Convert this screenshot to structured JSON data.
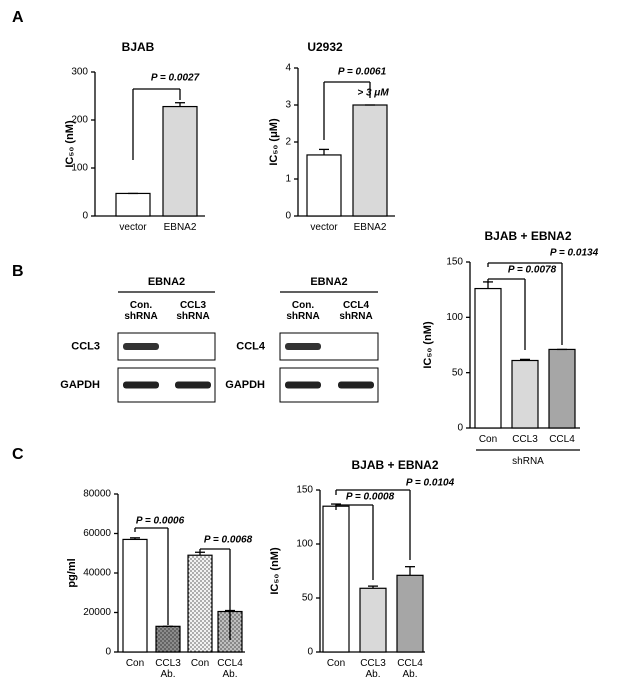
{
  "panels": [
    "A",
    "B",
    "C"
  ],
  "blots": [
    {
      "header": "EBNA2",
      "lanes": [
        "Con.\nshRNA",
        "CCL3\nshRNA"
      ],
      "rows": [
        "CCL3",
        "GAPDH"
      ]
    },
    {
      "header": "EBNA2",
      "lanes": [
        "Con.\nshRNA",
        "CCL4\nshRNA"
      ],
      "rows": [
        "CCL4",
        "GAPDH"
      ]
    }
  ],
  "chart_data": [
    {
      "type": "bar",
      "title": "BJAB",
      "ylabel": "IC₅₀ (nM)",
      "categories": [
        "vector",
        "EBNA2"
      ],
      "values": [
        47,
        228
      ],
      "errors": [
        0,
        8
      ],
      "colors": [
        "#ffffff",
        "#d9d9d9"
      ],
      "ylim": [
        0,
        300
      ],
      "yticks": [
        0,
        100,
        200,
        300
      ],
      "annotations": [
        "P = 0.0027"
      ]
    },
    {
      "type": "bar",
      "title": "U2932",
      "ylabel": "IC₅₀ (μM)",
      "categories": [
        "vector",
        "EBNA2"
      ],
      "values": [
        1.65,
        3.0
      ],
      "errors": [
        0.15,
        0
      ],
      "colors": [
        "#ffffff",
        "#d9d9d9"
      ],
      "ylim": [
        0,
        4
      ],
      "yticks": [
        0,
        1,
        2,
        3,
        4
      ],
      "annotations": [
        "P = 0.0061",
        "> 3 μM"
      ]
    },
    {
      "type": "bar",
      "title": "BJAB + EBNA2",
      "ylabel": "IC₅₀ (nM)",
      "xlabel": "shRNA",
      "categories": [
        "Con",
        "CCL3",
        "CCL4"
      ],
      "values": [
        126,
        61,
        71
      ],
      "errors": [
        6,
        1,
        0
      ],
      "colors": [
        "#ffffff",
        "#d9d9d9",
        "#a6a6a6"
      ],
      "ylim": [
        0,
        150
      ],
      "yticks": [
        0,
        50,
        100,
        150
      ],
      "annotations": [
        "P = 0.0078",
        "P = 0.0134"
      ]
    },
    {
      "type": "bar",
      "ylabel": "pg/ml",
      "categories": [
        "Con",
        "CCL3\nAb.",
        "Con",
        "CCL4\nAb."
      ],
      "values": [
        57000,
        13000,
        49000,
        20500
      ],
      "errors": [
        800,
        0,
        1500,
        500
      ],
      "colors": [
        "#ffffff",
        "#8c8c8c",
        "#f2f2f2",
        "#bfbfbf"
      ],
      "dotted": [
        false,
        true,
        true,
        true
      ],
      "ylim": [
        0,
        80000
      ],
      "yticks": [
        0,
        20000,
        40000,
        60000,
        80000
      ],
      "annotations": [
        "P = 0.0006",
        "P = 0.0068"
      ]
    },
    {
      "type": "bar",
      "title": "BJAB + EBNA2",
      "ylabel": "IC₅₀ (nM)",
      "categories": [
        "Con",
        "CCL3\nAb.",
        "CCL4\nAb."
      ],
      "values": [
        135,
        59,
        71
      ],
      "errors": [
        2,
        2,
        8
      ],
      "colors": [
        "#ffffff",
        "#d9d9d9",
        "#a6a6a6"
      ],
      "ylim": [
        0,
        150
      ],
      "yticks": [
        0,
        50,
        100,
        150
      ],
      "annotations": [
        "P = 0.0008",
        "P = 0.0104"
      ]
    }
  ]
}
